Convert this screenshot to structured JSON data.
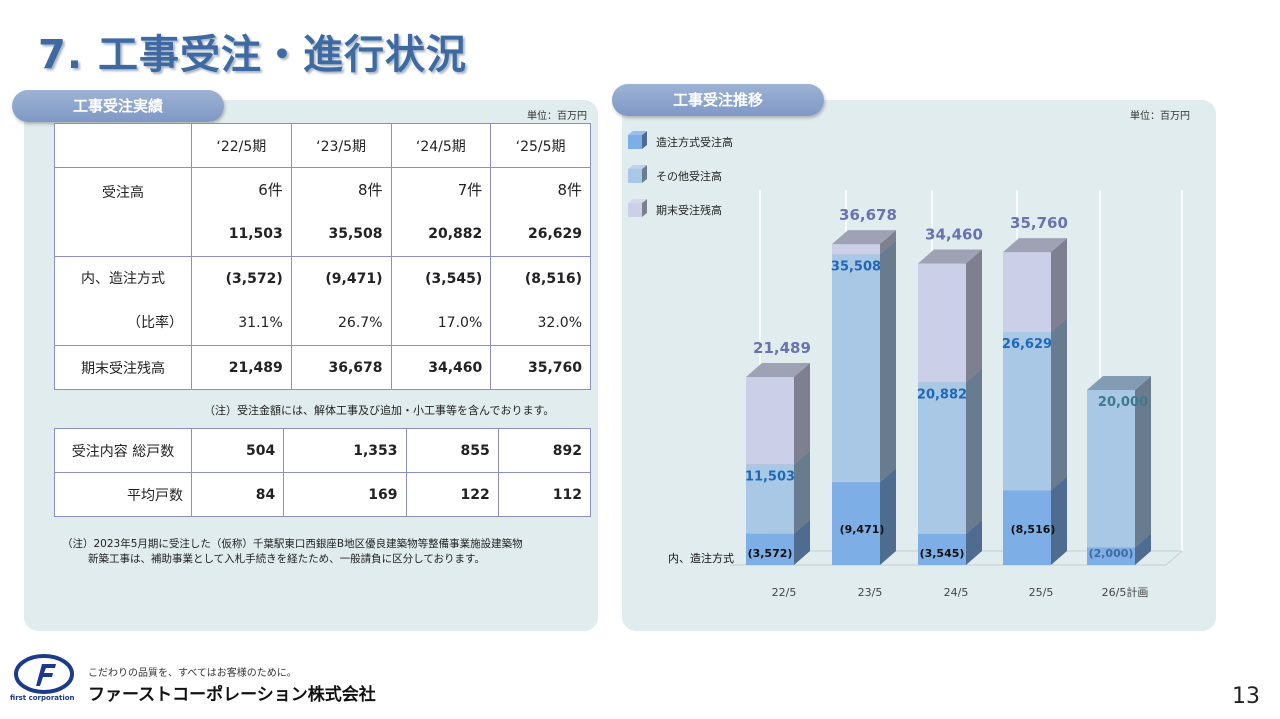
{
  "page": {
    "title": "7. 工事受注・進行状況",
    "page_number": "13"
  },
  "left": {
    "label": "工事受注実績",
    "unit": "単位：百万円",
    "headers": [
      "‘22/5期",
      "‘23/5期",
      "‘24/5期",
      "‘25/5期"
    ],
    "rows": {
      "orders_label": "受注高",
      "orders_count": [
        "6件",
        "8件",
        "7件",
        "8件"
      ],
      "orders_amount": [
        "11,503",
        "35,508",
        "20,882",
        "26,629"
      ],
      "design_build_label": "内、造注方式",
      "design_build_amount": [
        "(3,572)",
        "(9,471)",
        "(3,545)",
        "(8,516)"
      ],
      "ratio_label": "（比率）",
      "ratio": [
        "31.1%",
        "26.7%",
        "17.0%",
        "32.0%"
      ],
      "backlog_label": "期末受注残高",
      "backlog": [
        "21,489",
        "36,678",
        "34,460",
        "35,760"
      ]
    },
    "note1": "（注）受注金額には、解体工事及び追加・小工事等を含んでおります。",
    "units_table": {
      "total_label": "受注内容 総戸数",
      "total": [
        "504",
        "1,353",
        "855",
        "892"
      ],
      "avg_label": "平均戸数",
      "avg": [
        "84",
        "169",
        "122",
        "112"
      ]
    },
    "note2_line1": "（注）2023年5月期に受注した（仮称）千葉駅東口西銀座B地区優良建築物等整備事業施設建築物",
    "note2_line2": "新築工事は、補助事業として入札手続きを経たため、一般請負に区分しております。"
  },
  "right": {
    "label": "工事受注推移",
    "unit": "単位：百万円"
  },
  "chart_data": {
    "type": "bar",
    "stacked": true,
    "categories": [
      "22/5",
      "23/5",
      "24/5",
      "25/5",
      "26/5計画"
    ],
    "series": [
      {
        "name": "造注方式受注高",
        "values": [
          3572,
          9471,
          3545,
          8516,
          2000
        ],
        "color": "#7eaee6"
      },
      {
        "name": "その他受注高",
        "values": [
          7931,
          26037,
          17337,
          18113,
          18000
        ],
        "color": "#a9c8e6"
      },
      {
        "name": "期末受注残高",
        "values": [
          9986,
          1170,
          13578,
          9131,
          0
        ],
        "color": "#cccfe8"
      }
    ],
    "labels": {
      "backlog": [
        "21,489",
        "36,678",
        "34,460",
        "35,760",
        ""
      ],
      "orders": [
        "11,503",
        "35,508",
        "20,882",
        "26,629",
        "20,000"
      ],
      "design_build": [
        "(3,572)",
        "(9,471)",
        "(3,545)",
        "(8,516)",
        "(2,000)"
      ]
    },
    "design_build_label": "内、造注方式",
    "ylim": [
      0,
      40000
    ],
    "legend_position": "top-left"
  },
  "footer": {
    "tagline": "こだわりの品質を、すべてはお客様のために。",
    "company": "ファーストコーポレーション株式会社",
    "logo_text": "first corporation"
  }
}
